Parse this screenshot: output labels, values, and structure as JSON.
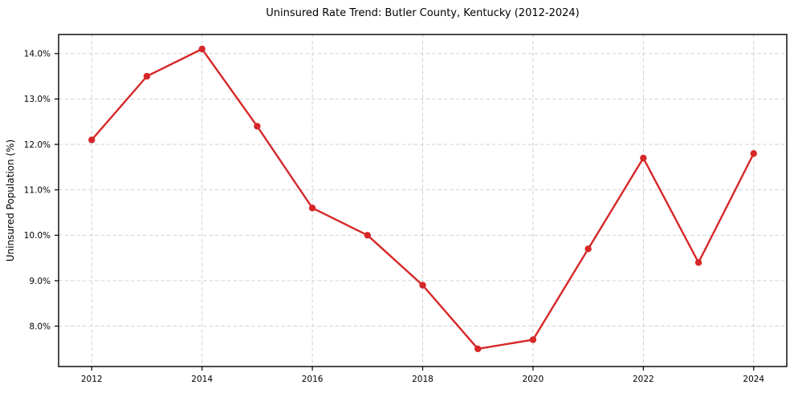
{
  "chart_data": {
    "type": "line",
    "title": "Uninsured Rate Trend: Butler County, Kentucky (2012-2024)",
    "xlabel": "",
    "ylabel": "Uninsured Population (%)",
    "x": [
      2012,
      2013,
      2014,
      2015,
      2016,
      2017,
      2018,
      2019,
      2020,
      2021,
      2022,
      2023,
      2024
    ],
    "series": [
      {
        "name": "Uninsured Population (%)",
        "values": [
          12.1,
          13.5,
          14.1,
          12.4,
          10.6,
          10.0,
          8.9,
          7.5,
          7.7,
          9.7,
          11.7,
          9.4,
          11.8
        ]
      }
    ],
    "xlim": [
      2011.4,
      2024.6
    ],
    "ylim": [
      7.11,
      14.42
    ],
    "x_ticks": [
      2012,
      2014,
      2016,
      2018,
      2020,
      2022,
      2024
    ],
    "y_ticks": [
      8.0,
      9.0,
      10.0,
      11.0,
      12.0,
      13.0,
      14.0
    ],
    "y_tick_suffix": "%",
    "y_tick_decimals": 1,
    "grid": "both",
    "grid_style": "dashed",
    "legend_position": "none",
    "marker": "circle",
    "colors": {
      "line": "#d62728",
      "marker": "#d62728",
      "grid": "#cccccc",
      "axis": "#000000",
      "text": "#000000",
      "background": "#ffffff"
    }
  }
}
